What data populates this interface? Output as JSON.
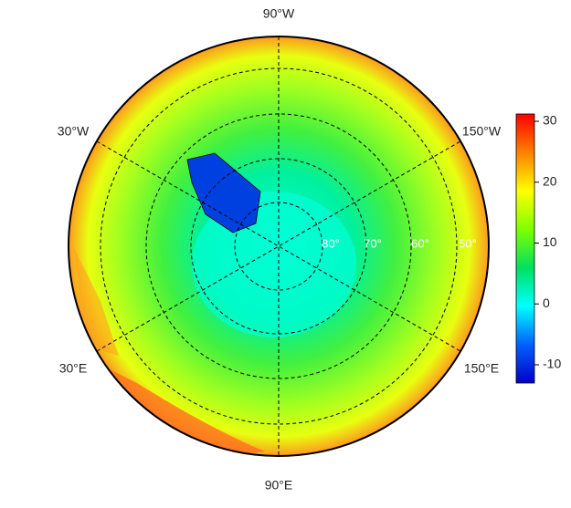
{
  "map": {
    "longitude_labels": [
      "90°W",
      "30°W",
      "150°W",
      "30°E",
      "150°E",
      "90°E"
    ],
    "latitude_labels": [
      "80°",
      "70°",
      "60°",
      "50°"
    ],
    "colorbar": {
      "lim": [
        -13,
        31.2
      ],
      "ticks": [
        30,
        20,
        10,
        0,
        -10
      ],
      "colors": [
        "#0000c8",
        "#0060ff",
        "#00ffff",
        "#00e060",
        "#7fff00",
        "#ffff00",
        "#ff8000",
        "#ff0000"
      ]
    }
  }
}
